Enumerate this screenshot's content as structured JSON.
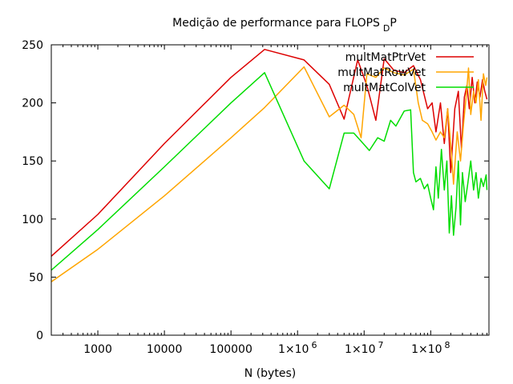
{
  "chart_data": {
    "type": "line",
    "title": "Medição de performance para FLOPS",
    "title_subscript": "D",
    "title_suffix": "P",
    "xlabel": "N (bytes)",
    "ylabel": "",
    "xscale": "log",
    "xlim": [
      200,
      750000000
    ],
    "ylim": [
      0,
      250
    ],
    "x_ticks": [
      {
        "value": 1000,
        "label": "1000"
      },
      {
        "value": 10000,
        "label": "10000"
      },
      {
        "value": 100000,
        "label": "100000"
      },
      {
        "value": 1000000,
        "label": "1×10"
      },
      {
        "value": 10000000,
        "label": "1×10"
      },
      {
        "value": 100000000,
        "label": "1×10"
      }
    ],
    "x_tick_exponents": [
      "6",
      "7",
      "8"
    ],
    "y_ticks": [
      0,
      50,
      100,
      150,
      200,
      250
    ],
    "grid": false,
    "legend_position": "top-right",
    "series": [
      {
        "name": "multMatPtrVet",
        "color": "#dd0000",
        "points": [
          [
            200,
            68
          ],
          [
            1000,
            104
          ],
          [
            10000,
            165
          ],
          [
            100000,
            222
          ],
          [
            320000,
            246
          ],
          [
            1250000,
            237
          ],
          [
            3000000,
            216
          ],
          [
            5000000,
            186
          ],
          [
            8000000,
            237
          ],
          [
            11000000,
            215
          ],
          [
            15000000,
            185
          ],
          [
            20000000,
            238
          ],
          [
            28000000,
            228
          ],
          [
            40000000,
            226
          ],
          [
            55000000,
            232
          ],
          [
            70000000,
            220
          ],
          [
            90000000,
            195
          ],
          [
            105000000,
            200
          ],
          [
            120000000,
            175
          ],
          [
            140000000,
            200
          ],
          [
            160000000,
            165
          ],
          [
            180000000,
            195
          ],
          [
            200000000,
            140
          ],
          [
            230000000,
            195
          ],
          [
            260000000,
            210
          ],
          [
            290000000,
            160
          ],
          [
            320000000,
            205
          ],
          [
            350000000,
            215
          ],
          [
            380000000,
            195
          ],
          [
            420000000,
            222
          ],
          [
            460000000,
            200
          ],
          [
            500000000,
            218
          ],
          [
            550000000,
            205
          ],
          [
            600000000,
            220
          ],
          [
            650000000,
            210
          ],
          [
            700000000,
            203
          ]
        ]
      },
      {
        "name": "multMatRowVet",
        "color": "#ffa500",
        "points": [
          [
            200,
            46
          ],
          [
            1000,
            74
          ],
          [
            10000,
            120
          ],
          [
            100000,
            170
          ],
          [
            320000,
            196
          ],
          [
            1250000,
            231
          ],
          [
            3000000,
            188
          ],
          [
            5000000,
            198
          ],
          [
            7000000,
            190
          ],
          [
            9000000,
            170
          ],
          [
            11000000,
            225
          ],
          [
            15000000,
            222
          ],
          [
            20000000,
            230
          ],
          [
            28000000,
            226
          ],
          [
            40000000,
            224
          ],
          [
            55000000,
            229
          ],
          [
            65000000,
            200
          ],
          [
            75000000,
            185
          ],
          [
            90000000,
            182
          ],
          [
            105000000,
            175
          ],
          [
            120000000,
            168
          ],
          [
            140000000,
            175
          ],
          [
            160000000,
            170
          ],
          [
            180000000,
            195
          ],
          [
            200000000,
            165
          ],
          [
            220000000,
            130
          ],
          [
            250000000,
            175
          ],
          [
            280000000,
            150
          ],
          [
            310000000,
            180
          ],
          [
            340000000,
            205
          ],
          [
            370000000,
            230
          ],
          [
            400000000,
            190
          ],
          [
            440000000,
            210
          ],
          [
            480000000,
            200
          ],
          [
            520000000,
            220
          ],
          [
            570000000,
            185
          ],
          [
            620000000,
            225
          ],
          [
            670000000,
            215
          ],
          [
            700000000,
            222
          ]
        ]
      },
      {
        "name": "multMatColVet",
        "color": "#00dd00",
        "points": [
          [
            200,
            56
          ],
          [
            1000,
            91
          ],
          [
            10000,
            145
          ],
          [
            100000,
            200
          ],
          [
            320000,
            226
          ],
          [
            1250000,
            150
          ],
          [
            3000000,
            126
          ],
          [
            5000000,
            174
          ],
          [
            7000000,
            174
          ],
          [
            9000000,
            167
          ],
          [
            12000000,
            159
          ],
          [
            16000000,
            170
          ],
          [
            20000000,
            167
          ],
          [
            25000000,
            185
          ],
          [
            30000000,
            180
          ],
          [
            40000000,
            193
          ],
          [
            50000000,
            194
          ],
          [
            55000000,
            140
          ],
          [
            60000000,
            132
          ],
          [
            70000000,
            135
          ],
          [
            80000000,
            126
          ],
          [
            90000000,
            130
          ],
          [
            100000000,
            118
          ],
          [
            110000000,
            108
          ],
          [
            120000000,
            145
          ],
          [
            130000000,
            118
          ],
          [
            145000000,
            160
          ],
          [
            160000000,
            125
          ],
          [
            175000000,
            150
          ],
          [
            190000000,
            88
          ],
          [
            205000000,
            120
          ],
          [
            220000000,
            86
          ],
          [
            240000000,
            110
          ],
          [
            260000000,
            150
          ],
          [
            280000000,
            95
          ],
          [
            300000000,
            140
          ],
          [
            330000000,
            115
          ],
          [
            360000000,
            130
          ],
          [
            400000000,
            150
          ],
          [
            440000000,
            125
          ],
          [
            480000000,
            140
          ],
          [
            520000000,
            118
          ],
          [
            570000000,
            135
          ],
          [
            620000000,
            128
          ],
          [
            680000000,
            138
          ],
          [
            700000000,
            125
          ]
        ]
      }
    ]
  }
}
